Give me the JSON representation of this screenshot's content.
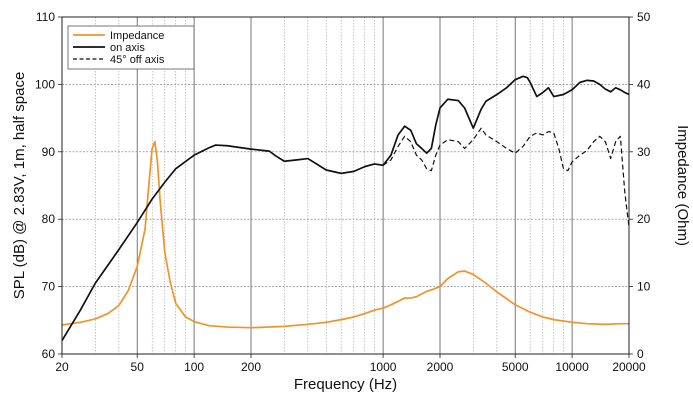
{
  "chart_data": {
    "type": "line",
    "xlabel": "Frequency (Hz)",
    "ylabel": "SPL (dB) @ 2.83V, 1m, half space",
    "y2label": "Impedance (Ohm)",
    "xscale": "log",
    "xlim": [
      20,
      20000
    ],
    "ylim": [
      60,
      110
    ],
    "y2lim": [
      0,
      50
    ],
    "grid": true,
    "legend_position": "top-left",
    "x_ticks": [
      {
        "value": 20,
        "label": "20"
      },
      {
        "value": 50,
        "label": "50"
      },
      {
        "value": 100,
        "label": "100"
      },
      {
        "value": 200,
        "label": "200"
      },
      {
        "value": 1000,
        "label": "1000"
      },
      {
        "value": 2000,
        "label": "2000"
      },
      {
        "value": 5000,
        "label": "5000"
      },
      {
        "value": 10000,
        "label": "10000"
      },
      {
        "value": 20000,
        "label": "20000"
      }
    ],
    "y_ticks": [
      {
        "value": 60,
        "label": "60"
      },
      {
        "value": 70,
        "label": "70"
      },
      {
        "value": 80,
        "label": "80"
      },
      {
        "value": 90,
        "label": "90"
      },
      {
        "value": 100,
        "label": "100"
      },
      {
        "value": 110,
        "label": "110"
      }
    ],
    "y2_ticks": [
      {
        "value": 0,
        "label": "0"
      },
      {
        "value": 10,
        "label": "10"
      },
      {
        "value": 20,
        "label": "20"
      },
      {
        "value": 30,
        "label": "30"
      },
      {
        "value": 40,
        "label": "40"
      },
      {
        "value": 50,
        "label": "50"
      }
    ],
    "series": [
      {
        "name": "Impedance",
        "axis": "right",
        "color": "#f0932b",
        "style": "solid",
        "x": [
          20,
          25,
          30,
          35,
          40,
          45,
          50,
          55,
          58,
          60,
          62,
          64,
          66,
          70,
          75,
          80,
          90,
          100,
          120,
          150,
          200,
          300,
          400,
          500,
          600,
          700,
          800,
          900,
          1000,
          1100,
          1200,
          1300,
          1400,
          1500,
          1700,
          1800,
          2000,
          2200,
          2500,
          2700,
          3000,
          3500,
          4000,
          5000,
          6000,
          7000,
          8000,
          10000,
          12000,
          15000,
          18000,
          20000
        ],
        "y": [
          4.3,
          4.7,
          5.2,
          6.0,
          7.2,
          9.5,
          13.0,
          18.5,
          26.0,
          30.5,
          31.5,
          28.5,
          23.0,
          15.0,
          10.5,
          7.5,
          5.5,
          4.8,
          4.2,
          4.0,
          3.9,
          4.1,
          4.4,
          4.7,
          5.1,
          5.5,
          6.0,
          6.5,
          6.8,
          7.3,
          7.8,
          8.3,
          8.3,
          8.5,
          9.3,
          9.5,
          10.0,
          11.2,
          12.2,
          12.3,
          11.8,
          10.5,
          9.2,
          7.3,
          6.2,
          5.5,
          5.1,
          4.7,
          4.5,
          4.4,
          4.5,
          4.5
        ]
      },
      {
        "name": "on axis",
        "axis": "left",
        "color": "#111111",
        "style": "solid",
        "x": [
          20,
          25,
          30,
          40,
          50,
          60,
          70,
          80,
          100,
          120,
          130,
          150,
          200,
          250,
          270,
          300,
          350,
          400,
          500,
          600,
          700,
          800,
          900,
          1000,
          1100,
          1200,
          1300,
          1400,
          1500,
          1600,
          1700,
          1800,
          1900,
          2000,
          2200,
          2500,
          2700,
          3000,
          3300,
          3500,
          4000,
          4500,
          5000,
          5500,
          5800,
          6000,
          6500,
          7000,
          7500,
          8000,
          9000,
          10000,
          11000,
          12000,
          13000,
          14000,
          15000,
          16000,
          17000,
          18000,
          19000,
          20000
        ],
        "y": [
          62.0,
          66.5,
          70.5,
          75.5,
          79.5,
          83.0,
          85.5,
          87.5,
          89.5,
          90.6,
          91.0,
          90.9,
          90.4,
          90.1,
          89.4,
          88.6,
          88.8,
          89.0,
          87.3,
          86.8,
          87.1,
          87.8,
          88.2,
          88.0,
          89.5,
          92.5,
          93.8,
          93.2,
          91.2,
          90.5,
          89.8,
          90.5,
          94.0,
          96.5,
          97.8,
          97.6,
          96.5,
          93.5,
          96.3,
          97.5,
          98.5,
          99.5,
          100.7,
          101.2,
          101.0,
          100.3,
          98.2,
          98.8,
          99.5,
          98.2,
          98.5,
          99.2,
          100.3,
          100.6,
          100.5,
          100.0,
          99.3,
          98.9,
          99.5,
          99.2,
          98.8,
          98.5
        ]
      },
      {
        "name": "45° off axis",
        "axis": "left",
        "color": "#111111",
        "style": "dashed",
        "x": [
          1000,
          1100,
          1200,
          1300,
          1400,
          1500,
          1600,
          1700,
          1800,
          1900,
          2000,
          2200,
          2500,
          2700,
          3000,
          3300,
          3500,
          4000,
          4500,
          5000,
          5500,
          6000,
          6500,
          7000,
          7500,
          8000,
          8500,
          9000,
          9500,
          10000,
          11000,
          12000,
          13000,
          14000,
          15000,
          16000,
          17000,
          18000,
          19000,
          20000
        ],
        "y": [
          88.0,
          88.8,
          90.8,
          92.3,
          91.5,
          89.5,
          88.8,
          87.5,
          87.2,
          89.5,
          91.0,
          91.8,
          91.5,
          90.5,
          91.8,
          93.5,
          92.5,
          91.5,
          90.5,
          89.8,
          90.8,
          92.3,
          92.8,
          92.5,
          93.0,
          92.8,
          90.5,
          87.5,
          87.2,
          88.5,
          89.5,
          90.2,
          91.5,
          92.3,
          91.5,
          89.0,
          91.5,
          92.3,
          84.0,
          78.8
        ]
      }
    ]
  }
}
